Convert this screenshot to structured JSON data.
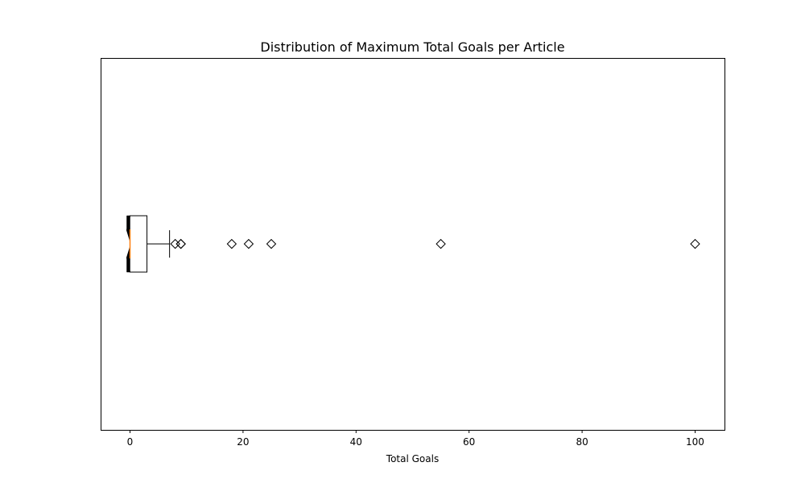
{
  "chart_data": {
    "type": "boxplot",
    "orientation": "horizontal",
    "notched": true,
    "title": "Distribution of Maximum Total Goals per Article",
    "xlabel": "Total Goals",
    "ylabel": "",
    "xlim": [
      -5.2,
      105.2
    ],
    "xticks": [
      0,
      20,
      40,
      60,
      80,
      100
    ],
    "xtick_labels": [
      "0",
      "20",
      "40",
      "60",
      "80",
      "100"
    ],
    "grid": false,
    "box": {
      "q1": 0,
      "median": 0,
      "q3": 3,
      "whisker_low": 0,
      "whisker_high": 7
    },
    "outliers": [
      8,
      9,
      9,
      18,
      21,
      25,
      55,
      100
    ],
    "colors": {
      "box": "#000000",
      "median": "#ff7f0e",
      "outlier": "#000000",
      "frame": "#000000"
    }
  }
}
